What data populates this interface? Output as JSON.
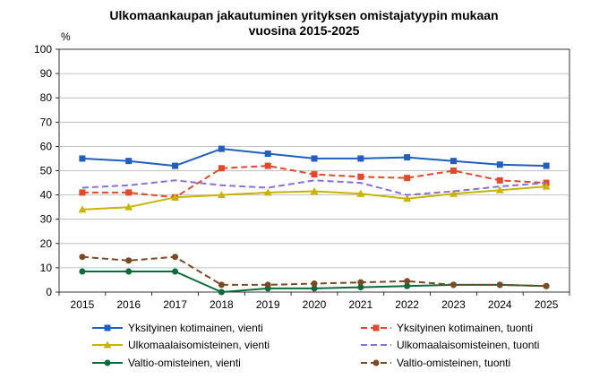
{
  "chart_data": {
    "type": "line",
    "title_line1": "Ulkomaankaupan jakautuminen yrityksen omistajatyypin mukaan",
    "title_line2": "vuosina 2015-2025",
    "ylabel": "%",
    "xlabel": "",
    "ylim": [
      0,
      100
    ],
    "yticks": [
      "0",
      "10",
      "20",
      "30",
      "40",
      "50",
      "60",
      "70",
      "80",
      "90",
      "100"
    ],
    "x": [
      "2015",
      "2016",
      "2017",
      "2018",
      "2019",
      "2020",
      "2021",
      "2022",
      "2023",
      "2024",
      "2025"
    ],
    "grid": true,
    "legend_position": "bottom",
    "series": [
      {
        "name": "Yksityinen kotimainen, vienti",
        "color": "#1f5fbf",
        "dash": "solid",
        "marker": "square",
        "values": [
          55,
          54,
          52,
          59,
          57,
          55,
          55,
          55.5,
          54,
          52.5,
          52
        ]
      },
      {
        "name": "Yksityinen kotimainen, tuonti",
        "color": "#e04a2a",
        "dash": "dashed",
        "marker": "square",
        "values": [
          41,
          41,
          39,
          51,
          52,
          48.5,
          47.5,
          47,
          50,
          46,
          45
        ]
      },
      {
        "name": "Ulkomaalaisomisteinen, vienti",
        "color": "#c8b400",
        "dash": "solid",
        "marker": "triangle",
        "values": [
          34,
          35,
          39,
          40,
          41,
          41.5,
          40.5,
          38.5,
          40.5,
          42,
          43.5
        ]
      },
      {
        "name": "Ulkomaalaisomisteinen, tuonti",
        "color": "#8a6fd6",
        "dash": "dashed",
        "marker": "none",
        "values": [
          43,
          44,
          46,
          44,
          43,
          46,
          45,
          40,
          41.5,
          43.5,
          45
        ]
      },
      {
        "name": "Valtio-omisteinen, vienti",
        "color": "#0b6b3a",
        "dash": "solid",
        "marker": "circle",
        "values": [
          8.5,
          8.5,
          8.5,
          0,
          1.5,
          1.5,
          2,
          2.5,
          3,
          3,
          2.5
        ]
      },
      {
        "name": "Valtio-omisteinen, tuonti",
        "color": "#7a4a24",
        "dash": "dashed",
        "marker": "circle",
        "values": [
          14.5,
          13,
          14.5,
          3,
          3,
          3.5,
          4,
          4.5,
          3,
          3,
          2.5
        ]
      }
    ]
  }
}
